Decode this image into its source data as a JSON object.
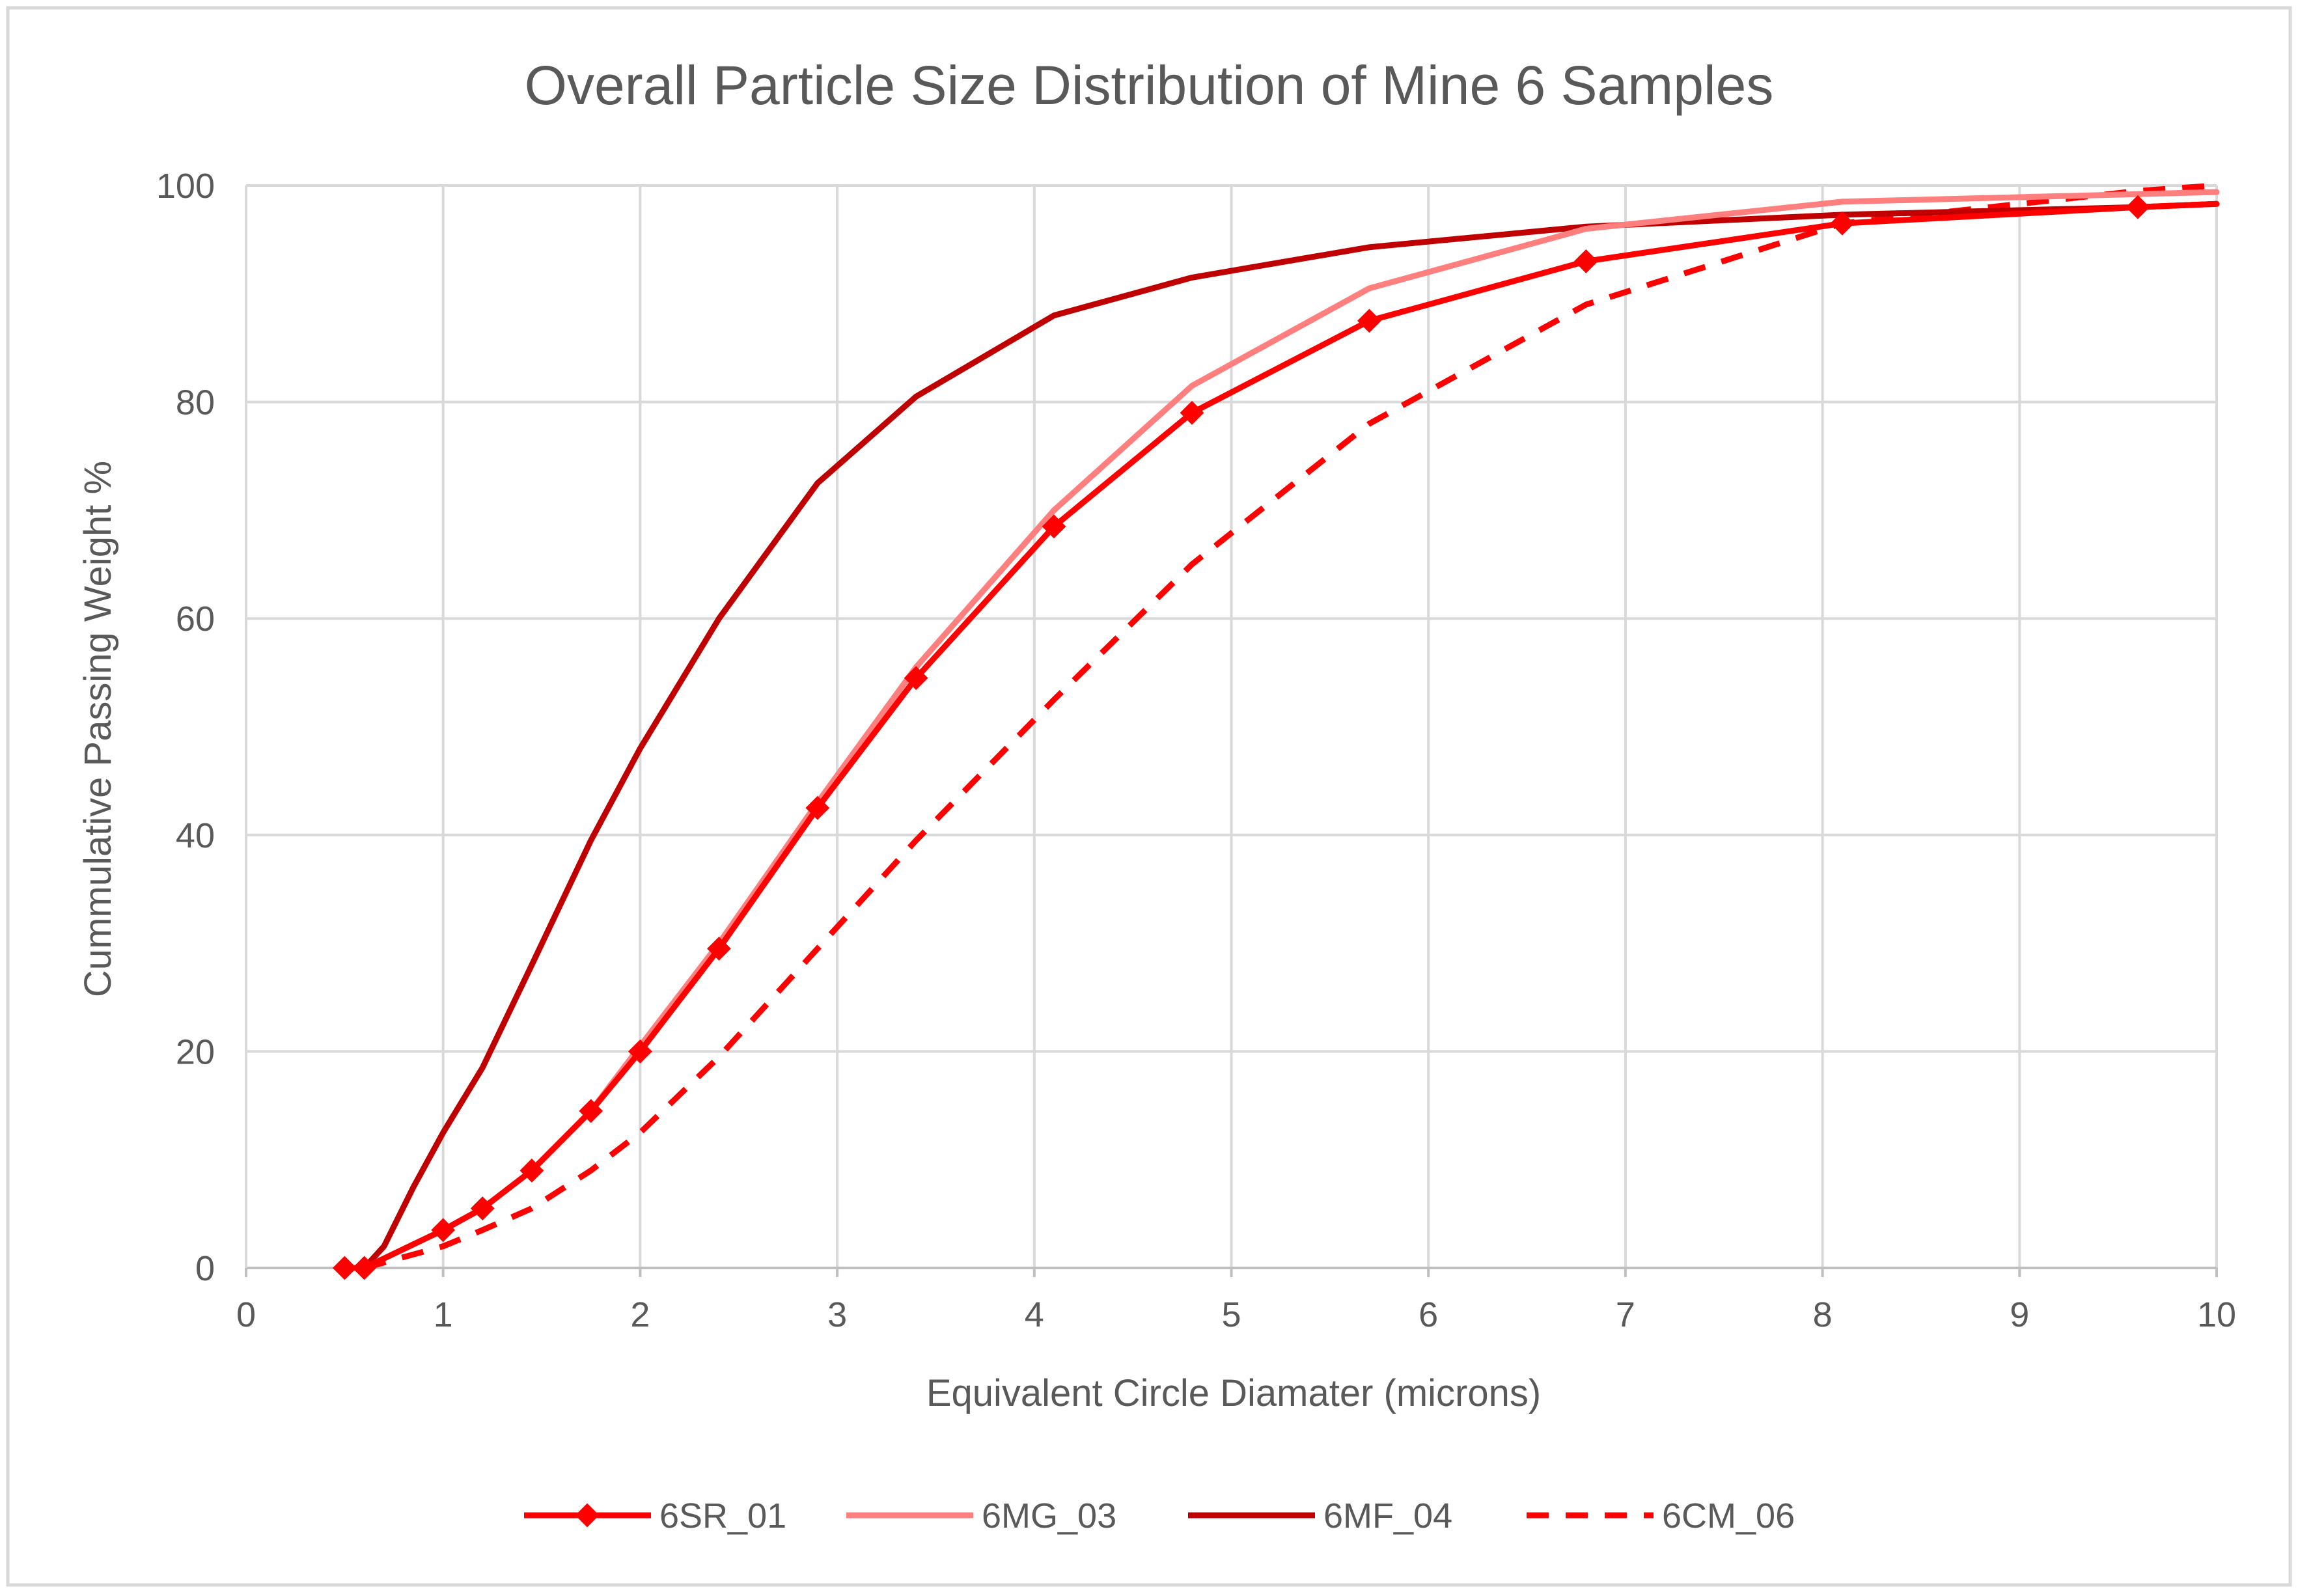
{
  "chart_data": {
    "type": "line",
    "title": "Overall Particle Size Distribution of Mine 6 Samples",
    "xlabel": "Equivalent Circle Diamater (microns)",
    "ylabel": "Cummulative Passing Weight %",
    "xlim": [
      0,
      10
    ],
    "ylim": [
      0,
      100
    ],
    "x_ticks": [
      0,
      1,
      2,
      3,
      4,
      5,
      6,
      7,
      8,
      9,
      10
    ],
    "y_ticks": [
      0,
      20,
      40,
      60,
      80,
      100
    ],
    "x_tick_labels": [
      "0",
      "1",
      "2",
      "3",
      "4",
      "5",
      "6",
      "7",
      "8",
      "9",
      "10"
    ],
    "y_tick_labels": [
      "0",
      "20",
      "40",
      "60",
      "80",
      "100"
    ],
    "grid": true,
    "legend_position": "bottom",
    "series": [
      {
        "name": "6SR_01",
        "color": "#ff0000",
        "dash": "solid",
        "marker": "diamond",
        "x": [
          0.5,
          0.6,
          1.0,
          1.2,
          1.45,
          1.75,
          2.0,
          2.4,
          2.9,
          3.4,
          4.1,
          4.8,
          5.7,
          6.8,
          8.1,
          9.6,
          10.0
        ],
        "y": [
          0,
          0,
          3.5,
          5.5,
          9,
          14.5,
          20,
          29.5,
          42.5,
          54.5,
          68.5,
          79,
          87.5,
          93,
          96.5,
          98,
          98.3
        ]
      },
      {
        "name": "6MG_03",
        "color": "#ff7f7f",
        "dash": "solid",
        "marker": "none",
        "x": [
          0.5,
          0.6,
          1.0,
          1.2,
          1.45,
          1.75,
          2.0,
          2.4,
          2.9,
          3.4,
          4.1,
          4.8,
          5.7,
          6.8,
          8.1,
          9.6,
          10.0
        ],
        "y": [
          0,
          0,
          3.5,
          5.5,
          9,
          14.5,
          20.5,
          30,
          43,
          55.5,
          70,
          81.5,
          90.5,
          96,
          98.5,
          99.2,
          99.4
        ]
      },
      {
        "name": "6MF_04",
        "color": "#c00000",
        "dash": "solid",
        "marker": "none",
        "x": [
          0.6,
          0.7,
          0.85,
          1.0,
          1.2,
          1.45,
          1.75,
          2.0,
          2.4,
          2.9,
          3.4,
          4.1,
          4.8,
          5.7,
          6.8,
          8.1,
          9.6,
          10.0
        ],
        "y": [
          0,
          2,
          7.5,
          12.5,
          18.5,
          28,
          39.5,
          48,
          60,
          72.5,
          80.5,
          88,
          91.5,
          94.3,
          96.2,
          97.3,
          98,
          98.3
        ]
      },
      {
        "name": "6CM_06",
        "color": "#ff0000",
        "dash": "dashed",
        "marker": "none",
        "x": [
          0.6,
          1.0,
          1.2,
          1.45,
          1.75,
          2.0,
          2.4,
          2.9,
          3.4,
          4.1,
          4.8,
          5.7,
          6.8,
          8.1,
          9.6,
          10.0
        ],
        "y": [
          0,
          2,
          3.5,
          5.5,
          9,
          12.5,
          19.5,
          29.5,
          39.5,
          52.5,
          65,
          78,
          89,
          96.5,
          99.5,
          100
        ]
      }
    ]
  },
  "colors": {
    "title_text": "#595959",
    "axis_text": "#595959",
    "grid": "#d9d9d9",
    "border": "#d9d9d9",
    "axis_line": "#bfbfbf"
  }
}
